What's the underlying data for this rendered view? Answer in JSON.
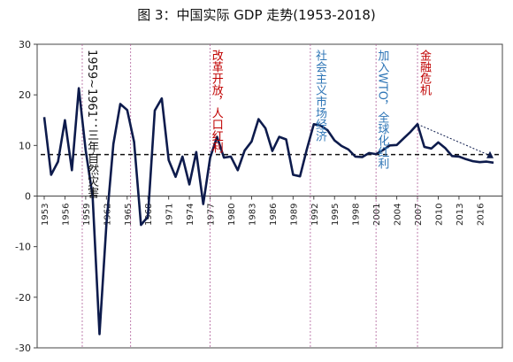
{
  "chart_data": {
    "type": "line",
    "title": "图 3：中国实际 GDP 走势(1953-2018)",
    "ylim": [
      -30,
      30
    ],
    "yticks": [
      30,
      20,
      10,
      0,
      -10,
      -20,
      -30
    ],
    "xtick_labels": [
      "1953",
      "1956",
      "1959",
      "1962",
      "1965",
      "1968",
      "1971",
      "1974",
      "1977",
      "1980",
      "1983",
      "1986",
      "1989",
      "1992",
      "1995",
      "1998",
      "2001",
      "2004",
      "2007",
      "2010",
      "2013",
      "2016"
    ],
    "x": [
      1953,
      1954,
      1955,
      1956,
      1957,
      1958,
      1959,
      1960,
      1961,
      1962,
      1963,
      1964,
      1965,
      1966,
      1967,
      1968,
      1969,
      1970,
      1971,
      1972,
      1973,
      1974,
      1975,
      1976,
      1977,
      1978,
      1979,
      1980,
      1981,
      1982,
      1983,
      1984,
      1985,
      1986,
      1987,
      1988,
      1989,
      1990,
      1991,
      1992,
      1993,
      1994,
      1995,
      1996,
      1997,
      1998,
      1999,
      2000,
      2001,
      2002,
      2003,
      2004,
      2005,
      2006,
      2007,
      2008,
      2009,
      2010,
      2011,
      2012,
      2013,
      2014,
      2015,
      2016,
      2017,
      2018
    ],
    "series": [
      {
        "values": [
          15.6,
          4.2,
          6.8,
          15.0,
          5.1,
          21.3,
          9.0,
          0.0,
          -27.3,
          -5.6,
          10.3,
          18.2,
          17.0,
          10.7,
          -5.7,
          -4.1,
          16.9,
          19.3,
          7.1,
          3.8,
          7.8,
          2.3,
          8.7,
          -1.6,
          7.6,
          11.7,
          7.6,
          7.8,
          5.1,
          9.0,
          10.8,
          15.2,
          13.4,
          8.9,
          11.7,
          11.2,
          4.2,
          3.9,
          9.3,
          14.2,
          13.9,
          13.0,
          11.0,
          9.9,
          9.2,
          7.8,
          7.7,
          8.5,
          8.3,
          9.1,
          10.0,
          10.1,
          11.4,
          12.7,
          14.2,
          9.7,
          9.4,
          10.6,
          9.5,
          7.9,
          7.8,
          7.3,
          6.9,
          6.7,
          6.8,
          6.6
        ]
      }
    ],
    "mean_line": 8.2,
    "trend_arrow": {
      "from": [
        2007,
        14.2
      ],
      "to": [
        2018,
        8.0
      ]
    },
    "annotations": [
      {
        "text": "1959~1961：三年自然灾害",
        "year": 1959.6,
        "color": "#111111"
      },
      {
        "text": "改革开放，人口红利",
        "year": 1977.6,
        "color": "#c00000"
      },
      {
        "text": "社会主义市场经济",
        "year": 1992.6,
        "color": "#2e75b6"
      },
      {
        "text": "加入WTO，全球化红利",
        "year": 2001.6,
        "color": "#2e75b6"
      },
      {
        "text": "金融危机",
        "year": 2007.7,
        "color": "#c00000"
      }
    ],
    "vlines": [
      1958.5,
      1965.5,
      1977,
      1991.5,
      2001,
      2007
    ],
    "colors": {
      "line": "#0d1b4c",
      "vline": "#b0609a",
      "mean": "#111111"
    }
  }
}
